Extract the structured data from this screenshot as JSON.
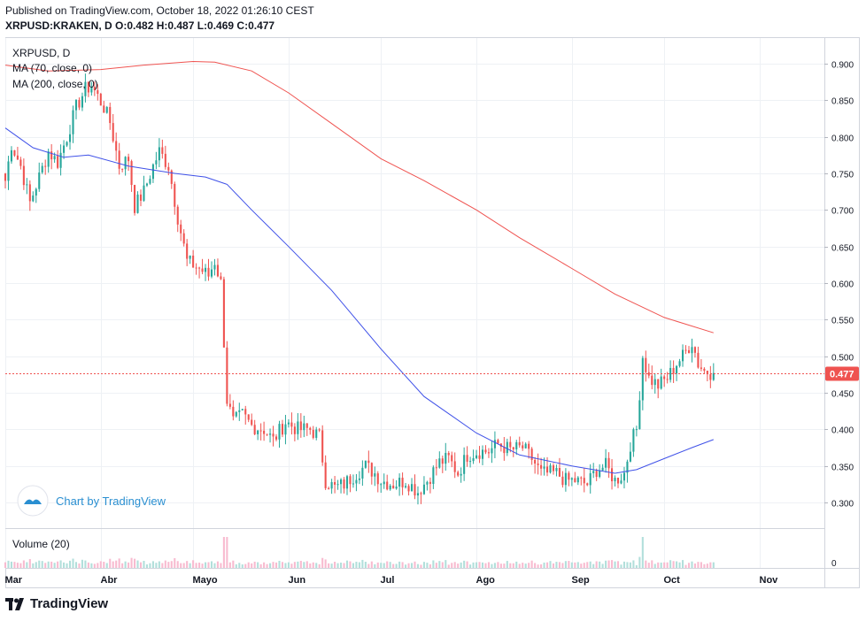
{
  "header": {
    "published": "Published on TradingView.com, October 18, 2022 01:26:10 CEST",
    "ohlc": "XRPUSD:KRAKEN, D  O:0.482 H:0.487 L:0.469 C:0.477"
  },
  "legend": {
    "symbol": "XRPUSD, D",
    "ma_slow": "MA (70, close, 0)",
    "ma_fast": "MA (200, close, 0)",
    "volume": "Volume (20)"
  },
  "watermark": "Chart by TradingView",
  "footer": {
    "brand": "TradingView"
  },
  "colors": {
    "up": "#26a69a",
    "down": "#ef5350",
    "vol_up": "#b2dfdb",
    "vol_down": "#f8bbd0",
    "ma70": "#3f51e8",
    "ma200": "#ef5350",
    "last_price": "#ef5350",
    "grid": "#eef1f5"
  },
  "chart_data": {
    "type": "candlestick",
    "y_axis": {
      "ticks": [
        "0.900",
        "0.850",
        "0.800",
        "0.750",
        "0.700",
        "0.650",
        "0.600",
        "0.550",
        "0.500",
        "0.450",
        "0.400",
        "0.350",
        "0.300"
      ],
      "ylim": [
        0.265,
        0.935
      ]
    },
    "volume_axis": {
      "ticks": [
        "0"
      ]
    },
    "x_axis": {
      "ticks": [
        "Mar",
        "Abr",
        "Mayo",
        "Jun",
        "Jul",
        "Ago",
        "Sep",
        "Oct",
        "Nov"
      ],
      "xlim": [
        "2022-03-01",
        "2022-11-22"
      ]
    },
    "last_price": {
      "value": 0.477,
      "label": "0.477"
    },
    "anchors": [
      [
        "2022-03-01",
        0.74
      ],
      [
        "2022-03-03",
        0.79
      ],
      [
        "2022-03-06",
        0.76
      ],
      [
        "2022-03-09",
        0.71
      ],
      [
        "2022-03-12",
        0.745
      ],
      [
        "2022-03-15",
        0.78
      ],
      [
        "2022-03-18",
        0.765
      ],
      [
        "2022-03-21",
        0.8
      ],
      [
        "2022-03-24",
        0.84
      ],
      [
        "2022-03-27",
        0.865
      ],
      [
        "2022-03-29",
        0.87
      ],
      [
        "2022-04-02",
        0.84
      ],
      [
        "2022-04-04",
        0.82
      ],
      [
        "2022-04-07",
        0.76
      ],
      [
        "2022-04-10",
        0.77
      ],
      [
        "2022-04-12",
        0.705
      ],
      [
        "2022-04-15",
        0.725
      ],
      [
        "2022-04-18",
        0.76
      ],
      [
        "2022-04-20",
        0.78
      ],
      [
        "2022-04-23",
        0.76
      ],
      [
        "2022-04-26",
        0.69
      ],
      [
        "2022-04-29",
        0.63
      ],
      [
        "2022-05-03",
        0.62
      ],
      [
        "2022-05-06",
        0.61
      ],
      [
        "2022-05-08",
        0.63
      ],
      [
        "2022-05-10",
        0.6
      ],
      [
        "2022-05-12",
        0.44
      ],
      [
        "2022-05-14",
        0.41
      ],
      [
        "2022-05-17",
        0.42
      ],
      [
        "2022-05-20",
        0.405
      ],
      [
        "2022-05-24",
        0.4
      ],
      [
        "2022-05-27",
        0.385
      ],
      [
        "2022-05-31",
        0.41
      ],
      [
        "2022-06-04",
        0.4
      ],
      [
        "2022-06-08",
        0.4
      ],
      [
        "2022-06-11",
        0.39
      ],
      [
        "2022-06-13",
        0.33
      ],
      [
        "2022-06-16",
        0.32
      ],
      [
        "2022-06-19",
        0.325
      ],
      [
        "2022-06-23",
        0.34
      ],
      [
        "2022-06-26",
        0.35
      ],
      [
        "2022-06-29",
        0.34
      ],
      [
        "2022-07-01",
        0.33
      ],
      [
        "2022-07-05",
        0.325
      ],
      [
        "2022-07-09",
        0.33
      ],
      [
        "2022-07-13",
        0.315
      ],
      [
        "2022-07-16",
        0.33
      ],
      [
        "2022-07-20",
        0.355
      ],
      [
        "2022-07-23",
        0.36
      ],
      [
        "2022-07-26",
        0.34
      ],
      [
        "2022-07-29",
        0.365
      ],
      [
        "2022-08-02",
        0.37
      ],
      [
        "2022-08-05",
        0.37
      ],
      [
        "2022-08-08",
        0.38
      ],
      [
        "2022-08-12",
        0.372
      ],
      [
        "2022-08-16",
        0.375
      ],
      [
        "2022-08-19",
        0.36
      ],
      [
        "2022-08-22",
        0.34
      ],
      [
        "2022-08-27",
        0.34
      ],
      [
        "2022-08-30",
        0.33
      ],
      [
        "2022-09-02",
        0.33
      ],
      [
        "2022-09-06",
        0.325
      ],
      [
        "2022-09-09",
        0.345
      ],
      [
        "2022-09-12",
        0.35
      ],
      [
        "2022-09-15",
        0.33
      ],
      [
        "2022-09-18",
        0.34
      ],
      [
        "2022-09-20",
        0.38
      ],
      [
        "2022-09-22",
        0.4
      ],
      [
        "2022-09-24",
        0.5
      ],
      [
        "2022-09-26",
        0.47
      ],
      [
        "2022-09-29",
        0.46
      ],
      [
        "2022-10-02",
        0.47
      ],
      [
        "2022-10-05",
        0.49
      ],
      [
        "2022-10-07",
        0.5
      ],
      [
        "2022-10-10",
        0.52
      ],
      [
        "2022-10-12",
        0.49
      ],
      [
        "2022-10-14",
        0.48
      ],
      [
        "2022-10-17",
        0.477
      ]
    ],
    "ma70": [
      [
        "2022-03-01",
        0.812
      ],
      [
        "2022-03-10",
        0.785
      ],
      [
        "2022-03-20",
        0.772
      ],
      [
        "2022-03-28",
        0.775
      ],
      [
        "2022-04-10",
        0.76
      ],
      [
        "2022-04-25",
        0.75
      ],
      [
        "2022-05-05",
        0.745
      ],
      [
        "2022-05-12",
        0.735
      ],
      [
        "2022-05-20",
        0.7
      ],
      [
        "2022-06-01",
        0.65
      ],
      [
        "2022-06-15",
        0.59
      ],
      [
        "2022-07-01",
        0.51
      ],
      [
        "2022-07-15",
        0.445
      ],
      [
        "2022-08-01",
        0.395
      ],
      [
        "2022-08-15",
        0.365
      ],
      [
        "2022-09-01",
        0.35
      ],
      [
        "2022-09-15",
        0.34
      ],
      [
        "2022-09-22",
        0.345
      ],
      [
        "2022-10-01",
        0.36
      ],
      [
        "2022-10-10",
        0.375
      ],
      [
        "2022-10-17",
        0.386
      ]
    ],
    "ma200": [
      [
        "2022-03-01",
        0.898
      ],
      [
        "2022-03-15",
        0.89
      ],
      [
        "2022-04-01",
        0.892
      ],
      [
        "2022-04-15",
        0.898
      ],
      [
        "2022-05-01",
        0.903
      ],
      [
        "2022-05-08",
        0.902
      ],
      [
        "2022-05-20",
        0.89
      ],
      [
        "2022-06-01",
        0.86
      ],
      [
        "2022-06-15",
        0.818
      ],
      [
        "2022-07-01",
        0.77
      ],
      [
        "2022-07-15",
        0.74
      ],
      [
        "2022-08-01",
        0.7
      ],
      [
        "2022-08-15",
        0.662
      ],
      [
        "2022-09-01",
        0.62
      ],
      [
        "2022-09-15",
        0.585
      ],
      [
        "2022-10-01",
        0.553
      ],
      [
        "2022-10-17",
        0.532
      ]
    ]
  }
}
